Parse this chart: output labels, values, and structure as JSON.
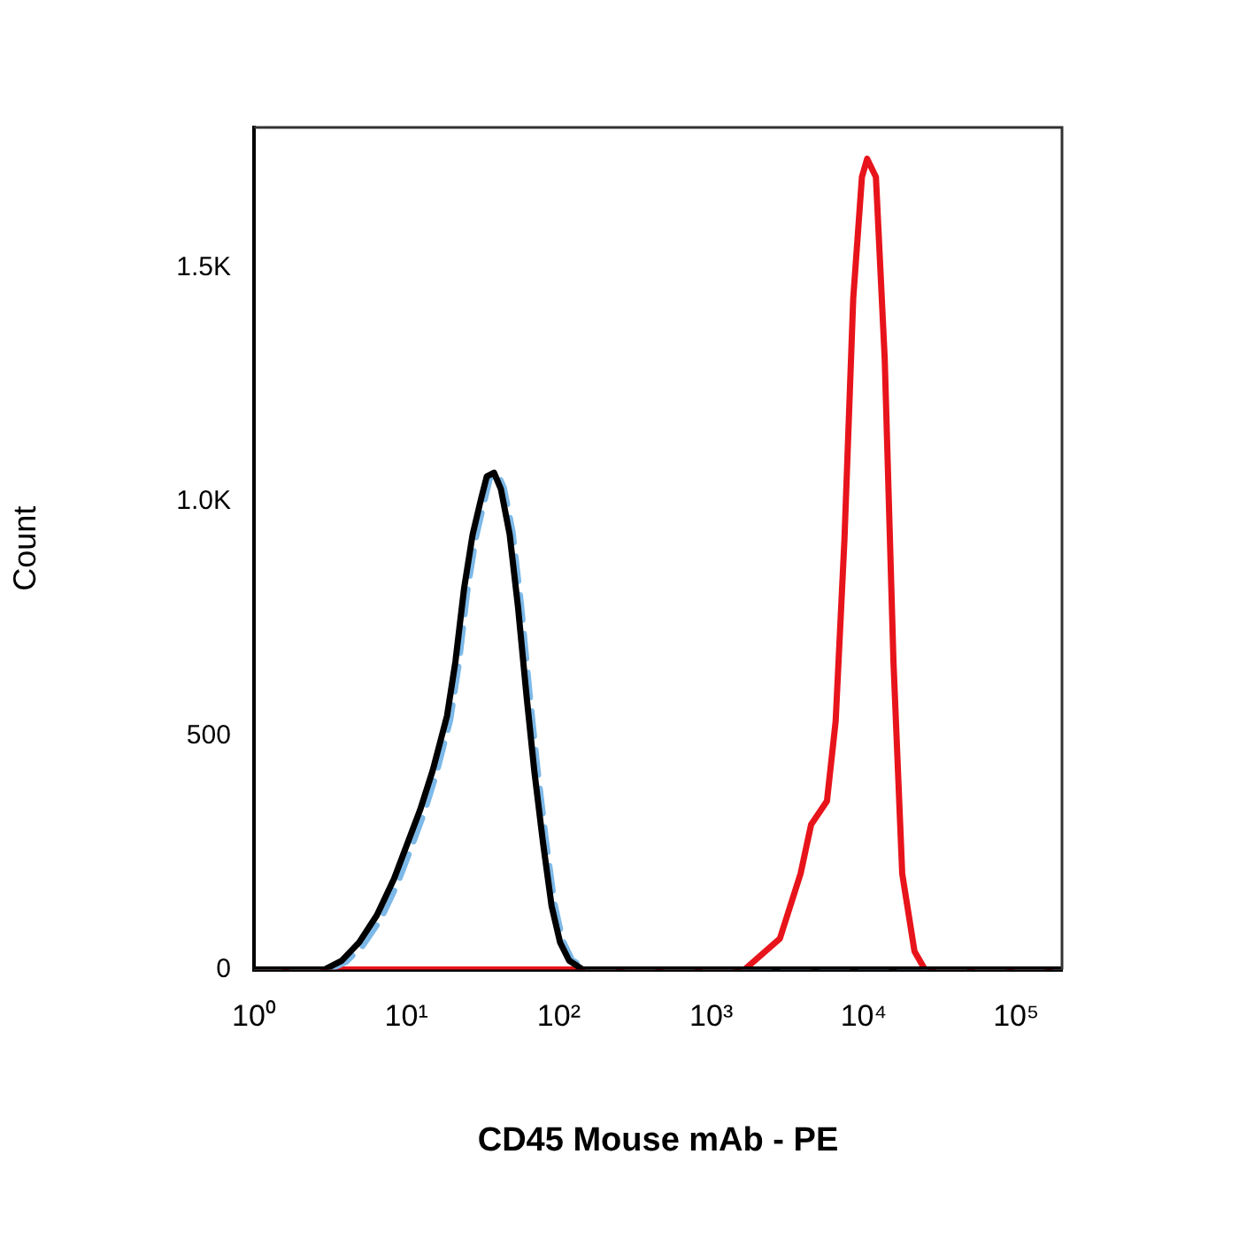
{
  "chart_data": {
    "type": "line",
    "xlabel": "CD45 Mouse mAb - PE",
    "ylabel": "Count",
    "log": "x",
    "marker": "none",
    "xlim": [
      1,
      200000
    ],
    "xticks": [
      {
        "value": 1,
        "label": "10⁰"
      },
      {
        "value": 10,
        "label": "10¹"
      },
      {
        "value": 100,
        "label": "10²"
      },
      {
        "value": 1000,
        "label": "10³"
      },
      {
        "value": 10000,
        "label": "10⁴"
      },
      {
        "value": 100000,
        "label": "10⁵"
      }
    ],
    "ylim": [
      0,
      1800
    ],
    "yticks": [
      0,
      500,
      {
        "value": 1000,
        "label": "1.0K"
      },
      {
        "value": 1500,
        "label": "1.5K"
      }
    ],
    "series": [
      {
        "color": "#000000",
        "line_style": "solid",
        "x": [
          1,
          2.9,
          3.76,
          4.9,
          6.4,
          8.3,
          10.2,
          12.3,
          14.9,
          18.5,
          21,
          23.9,
          27.2,
          31,
          33.7,
          37.6,
          41.7,
          47.6,
          54,
          61.6,
          69,
          78.8,
          89.7,
          102,
          117,
          144,
          200000
        ],
        "values": [
          0,
          0,
          19,
          58,
          116,
          194,
          271,
          341,
          426,
          543,
          659,
          814,
          930,
          1008,
          1054,
          1062,
          1027,
          930,
          775,
          581,
          426,
          271,
          136,
          58,
          19,
          0,
          0
        ]
      },
      {
        "color": "#7db9e8",
        "line_style": "dashed",
        "x": [
          1,
          3.1,
          4,
          5.2,
          6.8,
          8.8,
          10.8,
          13,
          15.7,
          19.4,
          22,
          25,
          28.5,
          32.5,
          35.3,
          39.4,
          43.6,
          49.7,
          56.4,
          64.3,
          72,
          82,
          93.5,
          106,
          122,
          150,
          200000
        ],
        "values": [
          0,
          0,
          16,
          52,
          108,
          186,
          262,
          333,
          418,
          534,
          650,
          805,
          922,
          1002,
          1050,
          1062,
          1030,
          936,
          782,
          590,
          436,
          280,
          142,
          62,
          21,
          0,
          0
        ]
      },
      {
        "color": "#e8141b",
        "line_style": "solid",
        "x": [
          1,
          1652,
          2818,
          3855,
          4520,
          5740,
          6550,
          7480,
          8540,
          9740,
          10540,
          12030,
          13740,
          15680,
          17900,
          21550,
          25240,
          200000
        ],
        "values": [
          0,
          0,
          66,
          205,
          310,
          360,
          531,
          919,
          1434,
          1694,
          1733,
          1694,
          1306,
          659,
          205,
          39,
          0,
          0
        ]
      }
    ]
  }
}
